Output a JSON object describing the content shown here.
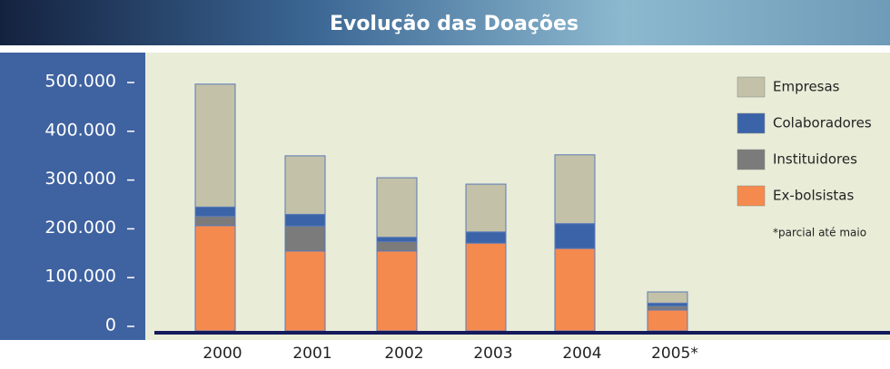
{
  "chart_data": {
    "type": "stacked_bar",
    "title": "Evolução das Doações",
    "categories": [
      "2000",
      "2001",
      "2002",
      "2003",
      "2004",
      "2005*"
    ],
    "series": [
      {
        "name": "Empresas",
        "color": "#c3c1a8",
        "values": [
          252000,
          120000,
          122000,
          98000,
          141000,
          23000
        ]
      },
      {
        "name": "Colaboradores",
        "color": "#3b64a8",
        "values": [
          19000,
          24000,
          9000,
          23000,
          51000,
          6000
        ]
      },
      {
        "name": "Instituidores",
        "color": "#7b7b7b",
        "values": [
          19000,
          51000,
          19000,
          0,
          0,
          8000
        ]
      },
      {
        "name": "Ex-bolsistas",
        "color": "#f58a4e",
        "values": [
          216000,
          164000,
          164000,
          180000,
          169000,
          43000
        ]
      }
    ],
    "ylim": [
      0,
      500000
    ],
    "yticks": [
      0,
      {
        "value": 100000,
        "label": "100.000"
      },
      {
        "value": 200000,
        "label": "200.000"
      },
      {
        "value": 300000,
        "label": "300.000"
      },
      {
        "value": 400000,
        "label": "400.000"
      },
      {
        "value": 500000,
        "label": "500.000"
      }
    ],
    "note": "*parcial até maio"
  }
}
